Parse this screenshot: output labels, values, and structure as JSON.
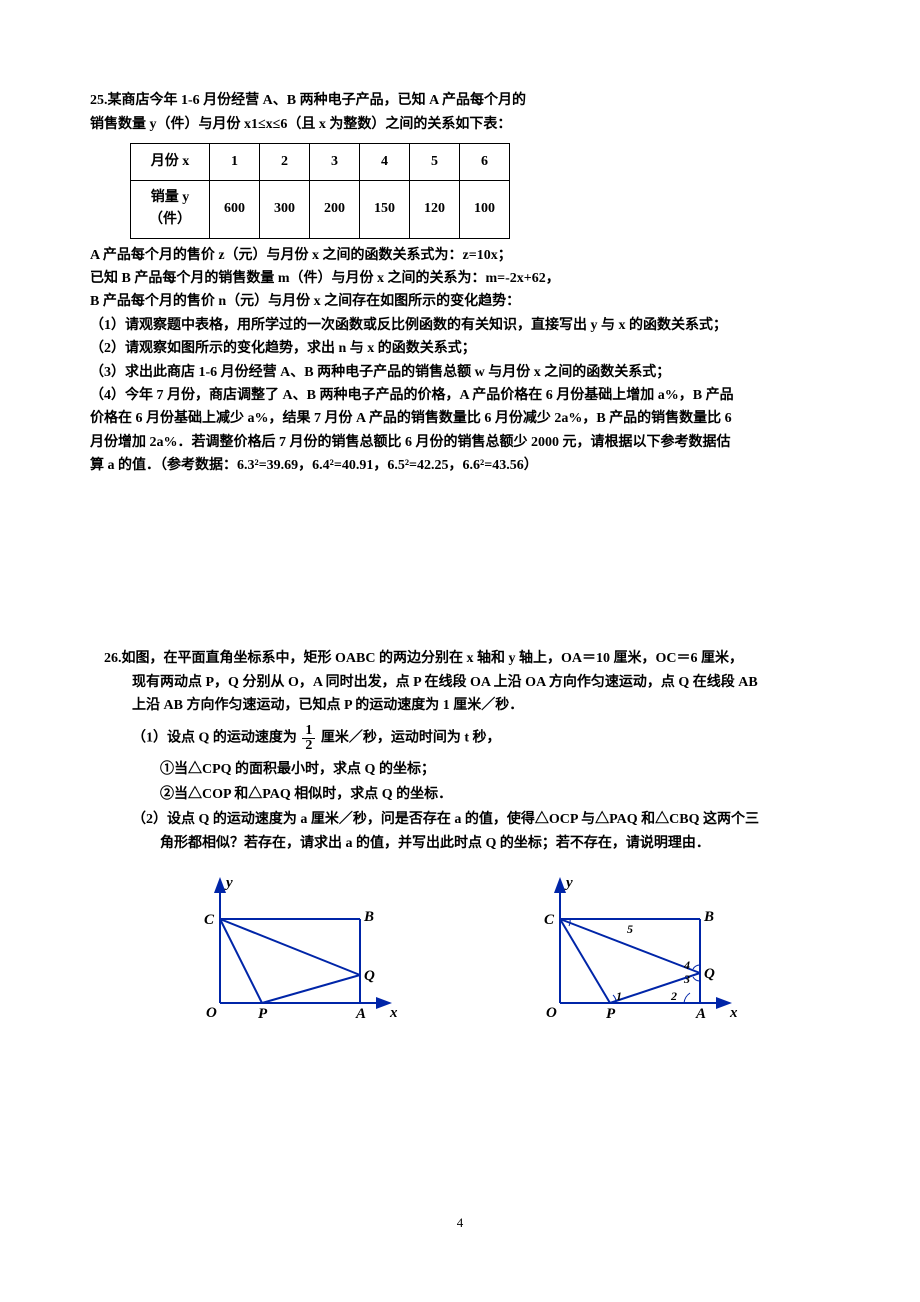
{
  "problem25": {
    "header_line1": "25.某商店今年 1-6 月份经营 A、B 两种电子产品，已知 A 产品每个月的",
    "header_line2": "销售数量 y（件）与月份 x1≤x≤6（且 x 为整数）之间的关系如下表：",
    "table": {
      "col0_row1": "月份 x",
      "col0_row2": "销量 y",
      "col0_row3": "（件）",
      "cols": [
        "1",
        "2",
        "3",
        "4",
        "5",
        "6"
      ],
      "vals": [
        "600",
        "300",
        "200",
        "150",
        "120",
        "100"
      ]
    },
    "line3": "A 产品每个月的售价 z（元）与月份 x 之间的函数关系式为：z=10x；",
    "line4": "已知 B 产品每个月的销售数量 m（件）与月份 x 之间的关系为：m=-2x+62，",
    "line5": " B 产品每个月的售价 n（元）与月份 x 之间存在如图所示的变化趋势：",
    "q1": "（1）请观察题中表格，用所学过的一次函数或反比例函数的有关知识，直接写出 y 与 x 的函数关系式；",
    "q2": "（2）请观察如图所示的变化趋势，求出 n 与 x 的函数关系式；",
    "q3": "（3）求出此商店 1-6 月份经营 A、B 两种电子产品的销售总额 w 与月份 x 之间的函数关系式；",
    "q4a": "（4）今年 7 月份，商店调整了 A、B 两种电子产品的价格，A 产品价格在 6 月份基础上增加 a%，B 产品",
    "q4b": "价格在 6 月份基础上减少 a%，结果 7 月份 A 产品的销售数量比 6 月份减少 2a%，B 产品的销售数量比 6",
    "q4c": "月份增加 2a%．若调整价格后 7 月份的销售总额比 6 月份的销售总额少 2000 元，请根据以下参考数据估",
    "q4d": "算 a 的值．（参考数据：6.3²=39.69，6.4²=40.91，6.5²=42.25，6.6²=43.56）"
  },
  "problem26": {
    "l1": "26.如图，在平面直角坐标系中，矩形 OABC 的两边分别在 x 轴和 y 轴上，OA＝10 厘米，OC＝6 厘米，",
    "l2": "现有两动点 P，Q 分别从 O，A 同时出发，点 P 在线段 OA 上沿 OA 方向作匀速运动，点 Q 在线段 AB",
    "l3": "上沿 AB 方向作匀速运动，已知点 P 的运动速度为 1 厘米／秒．",
    "q1pre": "（1）设点 Q 的运动速度为",
    "q1post": "厘米／秒，运动时间为 t 秒，",
    "frac_num": "1",
    "frac_den": "2",
    "q1a": "①当△CPQ 的面积最小时，求点 Q 的坐标；",
    "q1b": "②当△COP 和△PAQ 相似时，求点 Q 的坐标．",
    "q2a": "（2）设点 Q 的运动速度为 a 厘米／秒，问是否存在 a 的值，使得△OCP 与△PAQ 和△CBQ 这两个三",
    "q2b": "角形都相似？若存在，请求出 a 的值，并写出此时点 Q 的坐标；若不存在，请说明理由．",
    "fig1": {
      "labels": {
        "y": "y",
        "x": "x",
        "O": "O",
        "C": "C",
        "B": "B",
        "P": "P",
        "A": "A",
        "Q": "Q"
      },
      "stroke": "#0025a8",
      "stroke_width": 2,
      "text_color": "#000000",
      "font_style": "italic",
      "font_weight": "bold",
      "OA": 140,
      "OC": 84,
      "P": 42,
      "Q": 28
    },
    "fig2": {
      "labels": {
        "y": "y",
        "x": "x",
        "O": "O",
        "C": "C",
        "B": "B",
        "P": "P",
        "A": "A",
        "Q": "Q",
        "a5": "5",
        "a1": "1",
        "a2": "2",
        "a3": "3",
        "a4": "4"
      },
      "stroke": "#0025a8",
      "stroke_width": 2,
      "text_color": "#000000",
      "font_style": "italic",
      "font_weight": "bold",
      "OA": 140,
      "OC": 84,
      "P": 50,
      "Q": 30
    }
  },
  "page_number": "4"
}
